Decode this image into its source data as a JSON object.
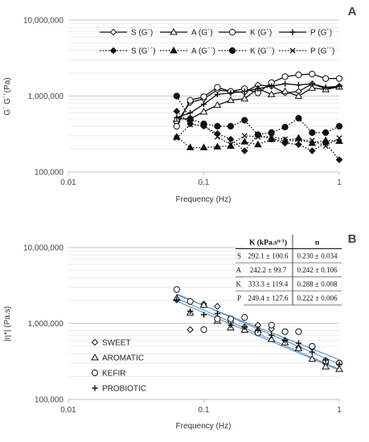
{
  "chart_data": [
    {
      "panel": "A",
      "type": "line",
      "xscale": "log",
      "yscale": "log",
      "xlabel": "Frequency (Hz)",
      "ylabel": "G´ G´´(Pa)",
      "xlim": [
        0.01,
        1
      ],
      "ylim": [
        100000,
        10000000
      ],
      "xticks": [
        "0.01",
        "0.1",
        "1"
      ],
      "yticks": [
        "100,000",
        "1,000,000",
        "10,000,000"
      ],
      "grid": "horizontal",
      "legend": "top-right",
      "x": [
        0.0631,
        0.0794,
        0.1,
        0.126,
        0.158,
        0.2,
        0.251,
        0.316,
        0.398,
        0.501,
        0.631,
        0.794,
        1.0
      ],
      "series": [
        {
          "name": "S (G´)",
          "line": "solid",
          "marker": "diamond-open",
          "values": [
            450000,
            820000,
            920000,
            1200000,
            1150000,
            1120000,
            1400000,
            1350000,
            1100000,
            1150000,
            1450000,
            1250000,
            1350000
          ]
        },
        {
          "name": "A (G´)",
          "line": "solid",
          "marker": "triangle-open",
          "values": [
            500000,
            500000,
            620000,
            760000,
            880000,
            920000,
            1250000,
            1050000,
            1150000,
            1000000,
            1280000,
            1220000,
            1320000
          ]
        },
        {
          "name": "K (G´)",
          "line": "solid",
          "marker": "circle-open",
          "values": [
            400000,
            880000,
            980000,
            1300000,
            1150000,
            1250000,
            1100000,
            1500000,
            1800000,
            1900000,
            1950000,
            1700000,
            1700000
          ]
        },
        {
          "name": "P (G´)",
          "line": "solid",
          "marker": "plus",
          "values": [
            520000,
            600000,
            780000,
            1050000,
            1100000,
            1150000,
            1250000,
            1350000,
            1450000,
            1400000,
            1450000,
            1300000,
            1350000
          ]
        },
        {
          "name": "S (G´´)",
          "line": "dotted",
          "marker": "diamond-filled",
          "values": [
            630000,
            430000,
            400000,
            320000,
            270000,
            190000,
            310000,
            270000,
            240000,
            230000,
            190000,
            240000,
            145000
          ]
        },
        {
          "name": "A (G´´)",
          "line": "dotted",
          "marker": "triangle-filled",
          "values": [
            290000,
            210000,
            210000,
            215000,
            220000,
            250000,
            230000,
            270000,
            260000,
            280000,
            240000,
            260000,
            255000
          ]
        },
        {
          "name": "K (G´´)",
          "line": "dotted",
          "marker": "circle-filled",
          "values": [
            1000000,
            500000,
            430000,
            400000,
            400000,
            480000,
            310000,
            330000,
            390000,
            510000,
            330000,
            330000,
            400000
          ]
        },
        {
          "name": "P (G´´)",
          "line": "dotted",
          "marker": "x",
          "values": [
            280000,
            420000,
            410000,
            290000,
            230000,
            300000,
            290000,
            290000,
            270000,
            250000,
            260000,
            220000,
            280000
          ]
        }
      ]
    },
    {
      "panel": "B",
      "type": "scatter",
      "xscale": "log",
      "yscale": "log",
      "xlabel": "Frequency (Hz)",
      "ylabel": "|η*| (Pa.s)",
      "xlim": [
        0.01,
        1
      ],
      "ylim": [
        100000,
        10000000
      ],
      "xticks": [
        "0.01",
        "0.1",
        "1"
      ],
      "yticks": [
        "100,000",
        "1,000,000",
        "10,000,000"
      ],
      "grid": "horizontal",
      "legend": "left",
      "x": [
        0.0631,
        0.0794,
        0.1,
        0.126,
        0.158,
        0.2,
        0.251,
        0.316,
        0.398,
        0.501,
        0.631,
        0.794,
        1.0
      ],
      "series": [
        {
          "name": "SWEET",
          "marker": "diamond-open",
          "values": [
            2050000,
            830000,
            1800000,
            1680000,
            1050000,
            900000,
            950000,
            850000,
            600000,
            480000,
            480000,
            300000,
            300000
          ]
        },
        {
          "name": "AROMATIC",
          "marker": "triangle-open",
          "values": [
            2150000,
            1380000,
            1750000,
            1080000,
            880000,
            820000,
            820000,
            620000,
            560000,
            470000,
            340000,
            270000,
            250000
          ]
        },
        {
          "name": "KEFIR",
          "marker": "circle-open",
          "values": [
            2800000,
            1950000,
            830000,
            1150000,
            1150000,
            1200000,
            750000,
            950000,
            780000,
            780000,
            500000,
            320000,
            300000
          ]
        },
        {
          "name": "PROBIOTIC",
          "marker": "plus",
          "values": [
            2050000,
            1450000,
            1300000,
            1350000,
            950000,
            900000,
            820000,
            700000,
            600000,
            550000,
            420000,
            330000,
            290000
          ]
        }
      ],
      "fit_lines": [
        {
          "model": "power",
          "K": 292100,
          "n": 0.23
        },
        {
          "model": "power",
          "K": 242200,
          "n": 0.242
        },
        {
          "model": "power",
          "K": 333300,
          "n": 0.288
        },
        {
          "model": "power",
          "K": 249400,
          "n": 0.222
        }
      ],
      "table": {
        "headers": [
          "",
          "K (kPa.s",
          "n-1",
          ")",
          "n"
        ],
        "rows": [
          [
            "S",
            "292.1 ± 100.6",
            "0.230 ± 0.034"
          ],
          [
            "A",
            "242.2 ± 99.7",
            "0.242 ± 0.106"
          ],
          [
            "K",
            "333.3 ± 119.4",
            "0.288 ± 0.008"
          ],
          [
            "P",
            "249.4 ± 127.6",
            "0.222 ± 0.006"
          ]
        ]
      }
    }
  ]
}
